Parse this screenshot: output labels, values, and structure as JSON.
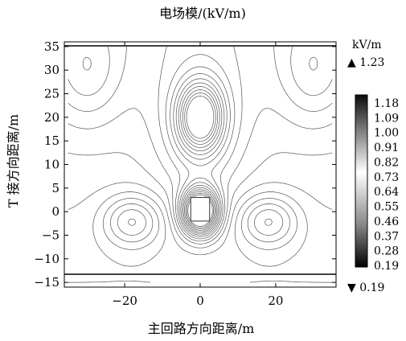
{
  "chart_data": {
    "type": "contour",
    "title": "电场模/(kV/m)",
    "xlabel": "主回路方向距离/m",
    "ylabel": "T 接方向距离/m",
    "xlim": [
      -36,
      36
    ],
    "ylim": [
      -16,
      36
    ],
    "x_ticks": [
      "−20",
      "0",
      "20"
    ],
    "x_tick_values": [
      -20,
      0,
      20
    ],
    "y_ticks": [
      "35",
      "30",
      "25",
      "20",
      "15",
      "10",
      "5",
      "0",
      "−5",
      "−10",
      "−15"
    ],
    "y_tick_values": [
      35,
      30,
      25,
      20,
      15,
      10,
      5,
      0,
      -5,
      -10,
      -15
    ],
    "colorbar": {
      "unit": "kV/m",
      "max_label": "▲ 1.23",
      "min_label": "▼ 0.19",
      "max": 1.23,
      "min": 0.19,
      "ticks": [
        "1.18",
        "1.09",
        "1.00",
        "0.91",
        "0.82",
        "0.73",
        "0.64",
        "0.55",
        "0.46",
        "0.37",
        "0.28",
        "0.19"
      ]
    },
    "structure": {
      "x": [
        -2.5,
        2.5
      ],
      "y": [
        -2,
        3
      ]
    },
    "peaks": [
      {
        "x": 0,
        "y": 20,
        "note": "upper closed loops"
      },
      {
        "x": 0,
        "y": 0,
        "note": "dense contours around structure"
      }
    ]
  }
}
